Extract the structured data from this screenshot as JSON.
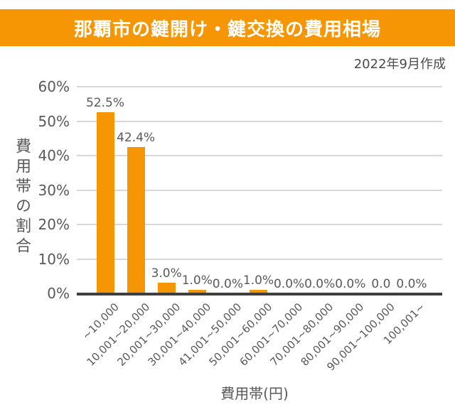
{
  "banner": {
    "title": "那覇市の鍵開け・鍵交換の費用相場",
    "bg_color": "#F79605",
    "text_color": "#FFFFFF"
  },
  "meta": {
    "date_note": "2022年9月作成"
  },
  "chart_data": {
    "type": "bar",
    "title": "那覇市の鍵開け・鍵交換の費用相場",
    "categories": [
      "~10,000",
      "10,001~20,000",
      "20,001~30,000",
      "30,001~40,000",
      "41,001~50,000",
      "50,001~60,000",
      "60,001~70,000",
      "70,001~80,000",
      "80,001~90,000",
      "90,001~100,000",
      "100,001~"
    ],
    "values": [
      52.5,
      42.4,
      3.0,
      1.0,
      0.0,
      1.0,
      0.0,
      0.0,
      0.0,
      0.0,
      0.0
    ],
    "value_labels": [
      "52.5%",
      "42.4%",
      "3.0%",
      "1.0%",
      "0.0%",
      "1.0%",
      "0.0%",
      "0.0%",
      "0.0%",
      "0.0",
      "0.0%"
    ],
    "xlabel": "費用帯(円)",
    "ylabel": "費用帯の割合",
    "y_ticks": [
      "0%",
      "10%",
      "20%",
      "30%",
      "40%",
      "50%",
      "60%"
    ],
    "ylim": [
      0,
      60
    ],
    "grid": true,
    "legend": false,
    "bar_color": "#F79605",
    "grid_color": "#D8D8D8",
    "axis_line_color": "#3F3F3F",
    "label_color": "#595959"
  }
}
